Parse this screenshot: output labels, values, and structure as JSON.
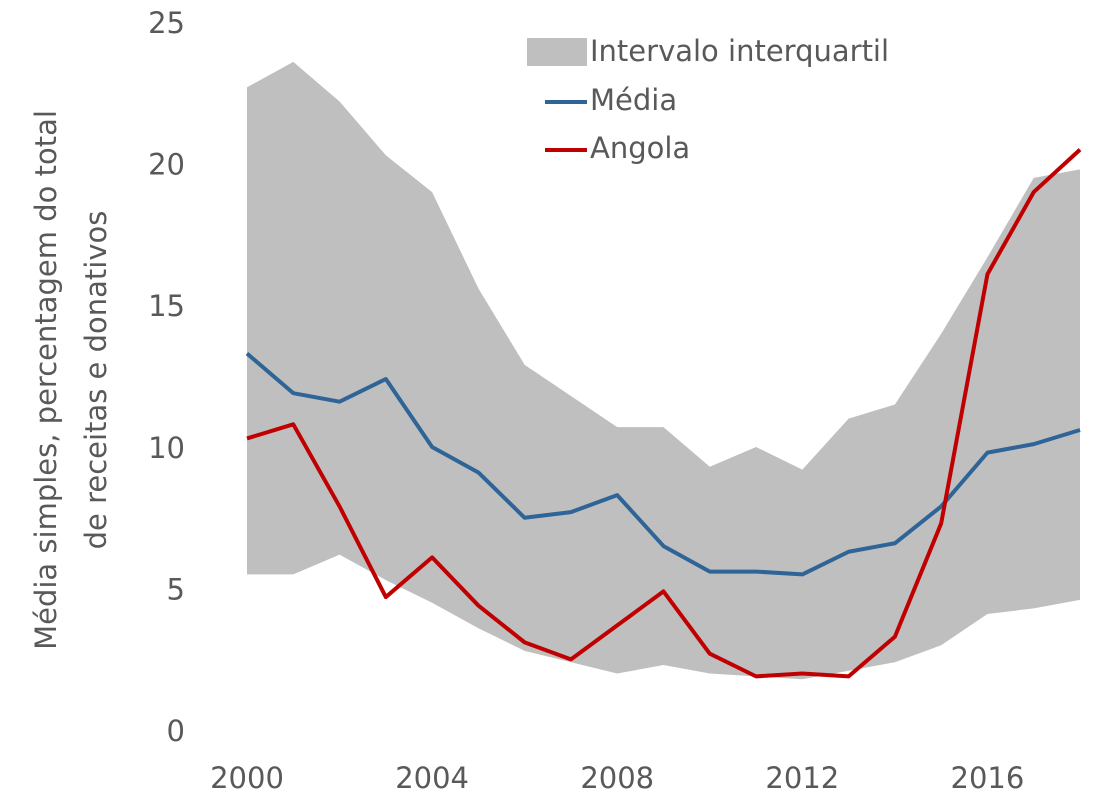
{
  "chart_data": {
    "type": "line",
    "y_label": [
      "Média simples, percentagem do total",
      "de receitas e donativos"
    ],
    "x": [
      2000,
      2001,
      2002,
      2003,
      2004,
      2005,
      2006,
      2007,
      2008,
      2009,
      2010,
      2011,
      2012,
      2013,
      2014,
      2015,
      2016,
      2017,
      2018
    ],
    "band": {
      "name": "Intervalo interquartil",
      "color": "#bfbfbf",
      "upper": [
        22.8,
        23.7,
        22.3,
        20.4,
        19.1,
        15.7,
        13.0,
        11.9,
        10.8,
        10.8,
        9.4,
        10.1,
        9.3,
        11.1,
        11.6,
        14.1,
        16.8,
        19.6,
        19.9
      ],
      "lower": [
        5.6,
        5.6,
        6.3,
        5.4,
        4.6,
        3.7,
        2.9,
        2.5,
        2.1,
        2.4,
        2.1,
        2.0,
        1.9,
        2.2,
        2.5,
        3.1,
        4.2,
        4.4,
        4.7
      ]
    },
    "series": [
      {
        "name": "Média",
        "color": "#2e6496",
        "values": [
          13.4,
          12.0,
          11.7,
          12.5,
          10.1,
          9.2,
          7.6,
          7.8,
          8.4,
          6.6,
          5.7,
          5.7,
          5.6,
          6.4,
          6.7,
          8.0,
          9.9,
          10.2,
          10.7
        ]
      },
      {
        "name": "Angola",
        "color": "#c00000",
        "values": [
          10.4,
          10.9,
          8.0,
          4.8,
          6.2,
          4.5,
          3.2,
          2.6,
          3.8,
          5.0,
          2.8,
          2.0,
          2.1,
          2.0,
          3.4,
          7.4,
          16.2,
          19.1,
          20.6
        ]
      }
    ],
    "xlim": [
      2000,
      2018
    ],
    "xticks": [
      2000,
      2004,
      2008,
      2012,
      2016
    ],
    "ylim": [
      0,
      25
    ],
    "yticks": [
      0,
      5,
      10,
      15,
      20,
      25
    ]
  }
}
